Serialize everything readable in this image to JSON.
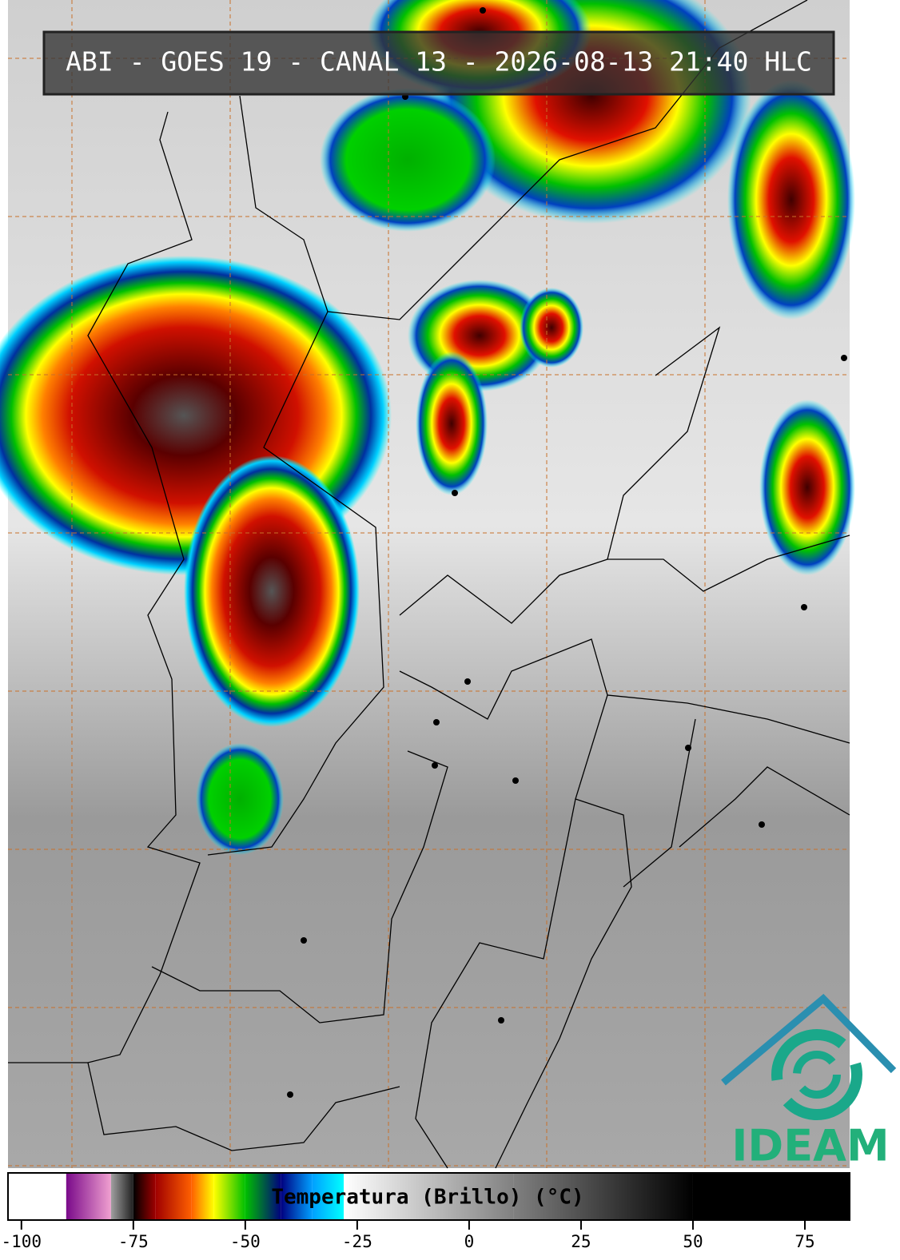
{
  "title": "ABI - GOES 19 - CANAL 13 - 2026-08-13 21:40 HLC",
  "logo": "IDEAM",
  "colorbar": {
    "label": "Temperatura (Brillo) (°C)",
    "xlim": [
      -103,
      85
    ],
    "xticks": [
      -100,
      -75,
      -50,
      -25,
      0,
      25,
      50,
      75
    ],
    "stops": [
      {
        "value": -103,
        "color": "#ffffff"
      },
      {
        "value": -90,
        "color": "#ffffff"
      },
      {
        "value": -90,
        "color": "#7a0a8a"
      },
      {
        "value": -80,
        "color": "#f0a0d0"
      },
      {
        "value": -80,
        "color": "#a0a0a0"
      },
      {
        "value": -75,
        "color": "#202020"
      },
      {
        "value": -75,
        "color": "#000000"
      },
      {
        "value": -70,
        "color": "#a00000"
      },
      {
        "value": -62,
        "color": "#ff6000"
      },
      {
        "value": -57,
        "color": "#ffff00"
      },
      {
        "value": -50,
        "color": "#00c000"
      },
      {
        "value": -42,
        "color": "#000080"
      },
      {
        "value": -35,
        "color": "#00a0ff"
      },
      {
        "value": -28,
        "color": "#00ffff"
      },
      {
        "value": -28,
        "color": "#ffffff"
      },
      {
        "value": 10,
        "color": "#808080"
      },
      {
        "value": 50,
        "color": "#000000"
      },
      {
        "value": 85,
        "color": "#000000"
      }
    ]
  }
}
